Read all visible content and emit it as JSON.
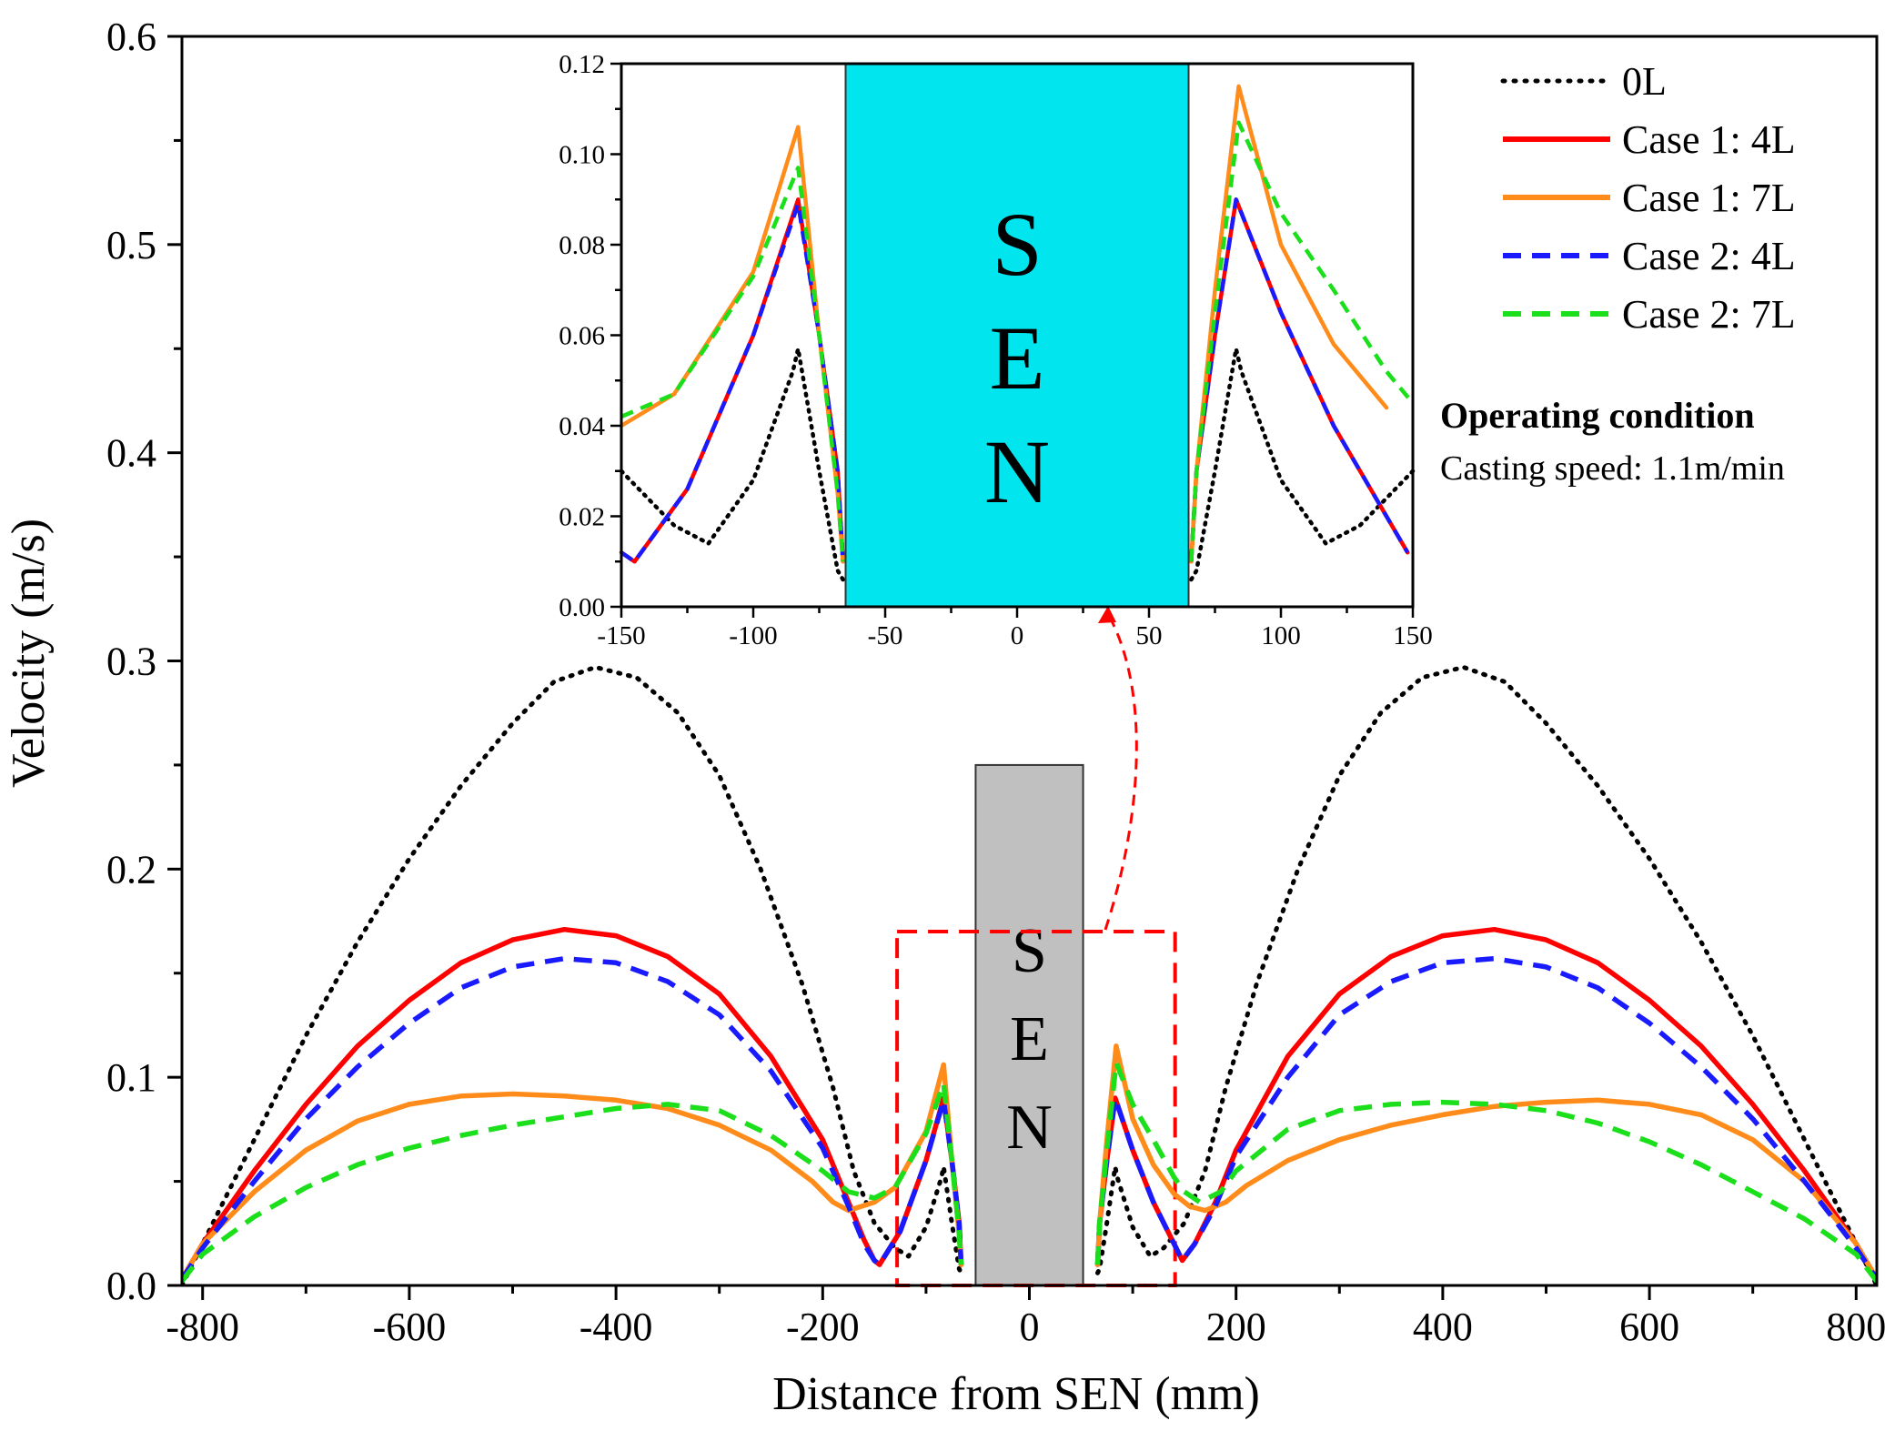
{
  "chart_data": {
    "type": "line",
    "xlabel": "Distance from SEN (mm)",
    "ylabel": "Velocity (m/s)",
    "xlim": [
      -820,
      820
    ],
    "ylim": [
      0,
      0.6
    ],
    "x_ticks": [
      -800,
      -600,
      -400,
      -200,
      0,
      200,
      400,
      600,
      800
    ],
    "x_tick_labels": [
      "-800",
      "-600",
      "-400",
      "-200",
      "0",
      "200",
      "400",
      "600",
      "800"
    ],
    "y_ticks": [
      0,
      0.1,
      0.2,
      0.3,
      0.4,
      0.5,
      0.6
    ],
    "y_tick_labels": [
      "0.0",
      "0.1",
      "0.2",
      "0.3",
      "0.4",
      "0.5",
      "0.6"
    ],
    "sen_label": "SEN",
    "sen_letters": [
      "S",
      "E",
      "N"
    ],
    "sen_range_mm": [
      -52,
      52
    ],
    "sen_top_velocity": 0.25,
    "zoom_box": {
      "x": [
        -128,
        141
      ],
      "y": [
        0,
        0.17
      ]
    },
    "legend": {
      "position": "top-right"
    },
    "series": [
      {
        "name": "0L",
        "color": "#000000",
        "style": "dotted",
        "points": [
          [
            -820,
            0.0
          ],
          [
            -800,
            0.02
          ],
          [
            -750,
            0.07
          ],
          [
            -700,
            0.12
          ],
          [
            -650,
            0.165
          ],
          [
            -600,
            0.205
          ],
          [
            -550,
            0.24
          ],
          [
            -500,
            0.27
          ],
          [
            -460,
            0.29
          ],
          [
            -420,
            0.297
          ],
          [
            -380,
            0.292
          ],
          [
            -340,
            0.275
          ],
          [
            -300,
            0.245
          ],
          [
            -260,
            0.2
          ],
          [
            -220,
            0.145
          ],
          [
            -190,
            0.095
          ],
          [
            -170,
            0.055
          ],
          [
            -150,
            0.03
          ],
          [
            -130,
            0.018
          ],
          [
            -117,
            0.014
          ],
          [
            -100,
            0.028
          ],
          [
            -85,
            0.052
          ],
          [
            -83,
            0.057
          ],
          [
            -75,
            0.03
          ],
          [
            -68,
            0.008
          ],
          [
            -66,
            0.006
          ],
          null,
          [
            66,
            0.006
          ],
          [
            68,
            0.008
          ],
          [
            75,
            0.03
          ],
          [
            83,
            0.057
          ],
          [
            85,
            0.052
          ],
          [
            100,
            0.028
          ],
          [
            117,
            0.014
          ],
          [
            130,
            0.018
          ],
          [
            150,
            0.03
          ],
          [
            170,
            0.055
          ],
          [
            190,
            0.095
          ],
          [
            220,
            0.145
          ],
          [
            260,
            0.2
          ],
          [
            300,
            0.245
          ],
          [
            340,
            0.275
          ],
          [
            380,
            0.292
          ],
          [
            420,
            0.297
          ],
          [
            460,
            0.29
          ],
          [
            500,
            0.27
          ],
          [
            550,
            0.24
          ],
          [
            600,
            0.205
          ],
          [
            650,
            0.165
          ],
          [
            700,
            0.12
          ],
          [
            750,
            0.07
          ],
          [
            800,
            0.02
          ],
          [
            820,
            0.0
          ]
        ]
      },
      {
        "name": "Case 1: 4L",
        "color": "#ff0000",
        "style": "solid",
        "points": [
          [
            -820,
            0.003
          ],
          [
            -800,
            0.02
          ],
          [
            -750,
            0.055
          ],
          [
            -700,
            0.087
          ],
          [
            -650,
            0.115
          ],
          [
            -600,
            0.137
          ],
          [
            -550,
            0.155
          ],
          [
            -500,
            0.166
          ],
          [
            -450,
            0.171
          ],
          [
            -400,
            0.168
          ],
          [
            -350,
            0.158
          ],
          [
            -300,
            0.14
          ],
          [
            -250,
            0.11
          ],
          [
            -200,
            0.07
          ],
          [
            -175,
            0.04
          ],
          [
            -160,
            0.022
          ],
          [
            -150,
            0.012
          ],
          [
            -145,
            0.01
          ],
          [
            -125,
            0.026
          ],
          [
            -100,
            0.06
          ],
          [
            -83,
            0.09
          ],
          [
            -75,
            0.06
          ],
          [
            -68,
            0.03
          ],
          [
            -66,
            0.01
          ],
          null,
          [
            66,
            0.01
          ],
          [
            68,
            0.03
          ],
          [
            75,
            0.06
          ],
          [
            83,
            0.09
          ],
          [
            100,
            0.065
          ],
          [
            120,
            0.04
          ],
          [
            140,
            0.02
          ],
          [
            148,
            0.012
          ],
          [
            160,
            0.02
          ],
          [
            180,
            0.04
          ],
          [
            200,
            0.065
          ],
          [
            250,
            0.11
          ],
          [
            300,
            0.14
          ],
          [
            350,
            0.158
          ],
          [
            400,
            0.168
          ],
          [
            450,
            0.171
          ],
          [
            500,
            0.166
          ],
          [
            550,
            0.155
          ],
          [
            600,
            0.137
          ],
          [
            650,
            0.115
          ],
          [
            700,
            0.087
          ],
          [
            750,
            0.055
          ],
          [
            800,
            0.02
          ],
          [
            820,
            0.003
          ]
        ]
      },
      {
        "name": "Case 1: 7L",
        "color": "#ff8c1a",
        "style": "solid",
        "points": [
          [
            -820,
            0.003
          ],
          [
            -800,
            0.02
          ],
          [
            -750,
            0.045
          ],
          [
            -700,
            0.065
          ],
          [
            -650,
            0.079
          ],
          [
            -600,
            0.087
          ],
          [
            -550,
            0.091
          ],
          [
            -500,
            0.092
          ],
          [
            -450,
            0.091
          ],
          [
            -400,
            0.089
          ],
          [
            -350,
            0.085
          ],
          [
            -300,
            0.077
          ],
          [
            -250,
            0.065
          ],
          [
            -210,
            0.05
          ],
          [
            -190,
            0.04
          ],
          [
            -175,
            0.036
          ],
          [
            -150,
            0.04
          ],
          [
            -130,
            0.047
          ],
          [
            -100,
            0.074
          ],
          [
            -83,
            0.106
          ],
          [
            -75,
            0.06
          ],
          [
            -68,
            0.025
          ],
          [
            -66,
            0.01
          ],
          null,
          [
            66,
            0.01
          ],
          [
            68,
            0.03
          ],
          [
            75,
            0.07
          ],
          [
            84,
            0.115
          ],
          [
            100,
            0.08
          ],
          [
            120,
            0.058
          ],
          [
            140,
            0.044
          ],
          [
            155,
            0.038
          ],
          [
            170,
            0.036
          ],
          [
            190,
            0.04
          ],
          [
            210,
            0.048
          ],
          [
            250,
            0.06
          ],
          [
            300,
            0.07
          ],
          [
            350,
            0.077
          ],
          [
            400,
            0.082
          ],
          [
            450,
            0.086
          ],
          [
            500,
            0.088
          ],
          [
            550,
            0.089
          ],
          [
            600,
            0.087
          ],
          [
            650,
            0.082
          ],
          [
            700,
            0.07
          ],
          [
            750,
            0.05
          ],
          [
            800,
            0.02
          ],
          [
            820,
            0.003
          ]
        ]
      },
      {
        "name": "Case 2: 4L",
        "color": "#1a1aff",
        "style": "dashed",
        "points": [
          [
            -820,
            0.003
          ],
          [
            -800,
            0.018
          ],
          [
            -750,
            0.05
          ],
          [
            -700,
            0.08
          ],
          [
            -650,
            0.105
          ],
          [
            -600,
            0.126
          ],
          [
            -550,
            0.143
          ],
          [
            -500,
            0.153
          ],
          [
            -450,
            0.157
          ],
          [
            -400,
            0.155
          ],
          [
            -350,
            0.146
          ],
          [
            -300,
            0.13
          ],
          [
            -250,
            0.103
          ],
          [
            -200,
            0.066
          ],
          [
            -175,
            0.038
          ],
          [
            -160,
            0.02
          ],
          [
            -150,
            0.012
          ],
          [
            -145,
            0.01
          ],
          [
            -125,
            0.026
          ],
          [
            -100,
            0.06
          ],
          [
            -83,
            0.089
          ],
          [
            -75,
            0.06
          ],
          [
            -68,
            0.03
          ],
          [
            -66,
            0.01
          ],
          null,
          [
            66,
            0.01
          ],
          [
            68,
            0.03
          ],
          [
            75,
            0.06
          ],
          [
            83,
            0.09
          ],
          [
            100,
            0.065
          ],
          [
            120,
            0.04
          ],
          [
            140,
            0.02
          ],
          [
            148,
            0.012
          ],
          [
            160,
            0.02
          ],
          [
            180,
            0.038
          ],
          [
            200,
            0.062
          ],
          [
            250,
            0.1
          ],
          [
            300,
            0.13
          ],
          [
            350,
            0.146
          ],
          [
            400,
            0.155
          ],
          [
            450,
            0.157
          ],
          [
            500,
            0.153
          ],
          [
            550,
            0.143
          ],
          [
            600,
            0.126
          ],
          [
            650,
            0.105
          ],
          [
            700,
            0.08
          ],
          [
            750,
            0.05
          ],
          [
            800,
            0.018
          ],
          [
            820,
            0.003
          ]
        ]
      },
      {
        "name": "Case 2: 7L",
        "color": "#1adf1a",
        "style": "dashed",
        "points": [
          [
            -820,
            0.002
          ],
          [
            -800,
            0.015
          ],
          [
            -750,
            0.033
          ],
          [
            -700,
            0.047
          ],
          [
            -650,
            0.058
          ],
          [
            -600,
            0.066
          ],
          [
            -550,
            0.072
          ],
          [
            -500,
            0.077
          ],
          [
            -450,
            0.081
          ],
          [
            -400,
            0.085
          ],
          [
            -350,
            0.087
          ],
          [
            -300,
            0.084
          ],
          [
            -250,
            0.072
          ],
          [
            -200,
            0.055
          ],
          [
            -175,
            0.045
          ],
          [
            -150,
            0.042
          ],
          [
            -130,
            0.047
          ],
          [
            -100,
            0.073
          ],
          [
            -83,
            0.097
          ],
          [
            -75,
            0.06
          ],
          [
            -68,
            0.025
          ],
          [
            -66,
            0.01
          ],
          null,
          [
            66,
            0.01
          ],
          [
            68,
            0.03
          ],
          [
            75,
            0.065
          ],
          [
            84,
            0.107
          ],
          [
            100,
            0.087
          ],
          [
            120,
            0.07
          ],
          [
            140,
            0.052
          ],
          [
            150,
            0.045
          ],
          [
            165,
            0.04
          ],
          [
            185,
            0.045
          ],
          [
            200,
            0.055
          ],
          [
            250,
            0.075
          ],
          [
            300,
            0.084
          ],
          [
            350,
            0.087
          ],
          [
            400,
            0.088
          ],
          [
            450,
            0.087
          ],
          [
            500,
            0.084
          ],
          [
            550,
            0.078
          ],
          [
            600,
            0.069
          ],
          [
            650,
            0.058
          ],
          [
            700,
            0.045
          ],
          [
            750,
            0.032
          ],
          [
            800,
            0.015
          ],
          [
            820,
            0.002
          ]
        ]
      }
    ],
    "inset": {
      "xlim": [
        -150,
        150
      ],
      "ylim": [
        0,
        0.12
      ],
      "x_ticks": [
        -150,
        -100,
        -50,
        0,
        50,
        100,
        150
      ],
      "x_tick_labels": [
        "-150",
        "-100",
        "-50",
        "0",
        "50",
        "100",
        "150"
      ],
      "y_ticks": [
        0,
        0.02,
        0.04,
        0.06,
        0.08,
        0.1,
        0.12
      ],
      "y_tick_labels": [
        "0.00",
        "0.02",
        "0.04",
        "0.06",
        "0.08",
        "0.10",
        "0.12"
      ],
      "sen_range_mm": [
        -65,
        65
      ],
      "sen_color": "#00e5ee"
    },
    "annotation": {
      "heading": "Operating condition",
      "text": "Casting speed: 1.1m/min"
    }
  }
}
